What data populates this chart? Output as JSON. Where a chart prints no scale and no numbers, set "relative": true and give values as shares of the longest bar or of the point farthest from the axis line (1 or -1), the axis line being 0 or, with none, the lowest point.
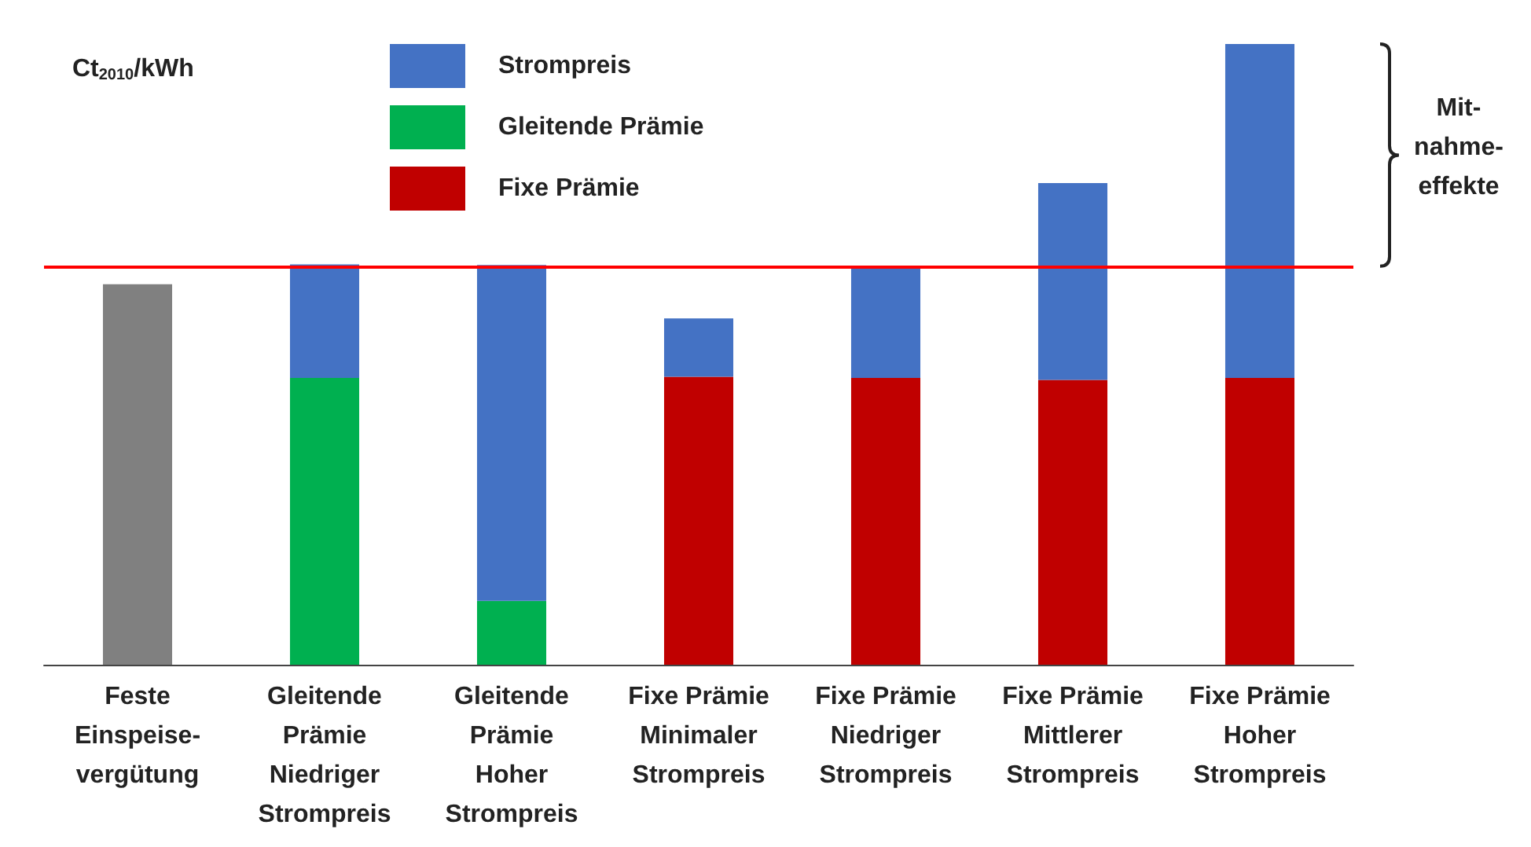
{
  "chart_data": {
    "type": "bar",
    "stacked": true,
    "relative": true,
    "ylabel": "Ct$_{2010}$/kWh",
    "legend": "top left",
    "categories": [
      "Feste\nEinspeise-\nvergütung",
      "Gleitende\nPrämie\nNiedriger\nStrompreis",
      "Gleitende\nPrämie\nHoher\nStrompreis",
      "Fixe Prämie\nMinimaler\nStrompreis",
      "Fixe Prämie\nNiedriger\nStrompreis",
      "Fixe Prämie\nMittlerer\nStrompreis",
      "Fixe Prämie\nHoher\nStrompreis"
    ],
    "series": [
      {
        "color": "#808080",
        "values": [
          0.613,
          null,
          null,
          null,
          null,
          null,
          null
        ]
      },
      {
        "name": "Fixe Prämie",
        "color": "#c00000",
        "values": [
          null,
          null,
          null,
          0.464,
          0.462,
          0.459,
          0.462
        ]
      },
      {
        "name": "Gleitende Prämie",
        "color": "#00b050",
        "values": [
          null,
          0.462,
          0.103,
          null,
          null,
          null,
          null
        ]
      },
      {
        "name": "Strompreis",
        "color": "#4472c4",
        "values": [
          null,
          0.183,
          0.541,
          0.094,
          0.178,
          0.317,
          0.538
        ]
      }
    ],
    "ref_lines": [
      {
        "axis": "y",
        "value": 0.642,
        "color": "#ff0000"
      }
    ],
    "annotations": [
      "Mit-\nnahme-\neffekte"
    ]
  }
}
